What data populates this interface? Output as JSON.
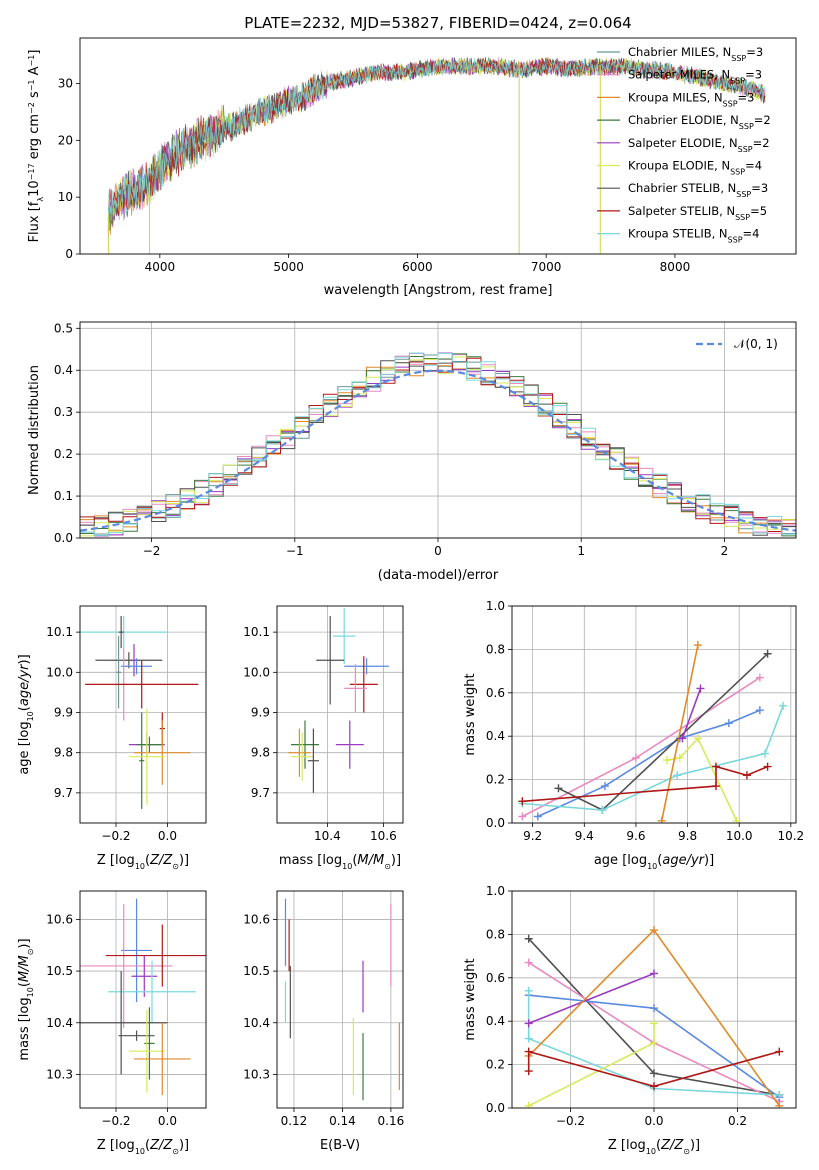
{
  "title": "PLATE=2232, MJD=53827, FIBERID=0424, z=0.064",
  "colors": {
    "Chabrier MILES": "#6a9a9a",
    "Salpeter MILES": "#e88ac0",
    "Kroupa MILES": "#e08a28",
    "Chabrier ELODIE": "#3c7a3c",
    "Salpeter ELODIE": "#9a3ac0",
    "Kroupa ELODIE": "#d8ea5a",
    "Chabrier STELIB": "#505050",
    "Salpeter STELIB": "#b01818",
    "Kroupa STELIB": "#7ad8dc",
    "normal": "#5a8ae0",
    "blue_fit": "#5a8ae0",
    "orange_fit": "#e08a28"
  },
  "chart_data": [
    {
      "id": "spectrum",
      "type": "line",
      "title": "PLATE=2232, MJD=53827, FIBERID=0424, z=0.064",
      "xlabel": "wavelength [Angstrom, rest frame]",
      "ylabel": "Flux [fλ 10⁻¹⁷ erg cm⁻² s⁻¹ A⁻¹]",
      "xlim": [
        3380,
        8940
      ],
      "ylim": [
        0,
        38
      ],
      "xticks": [
        "4000",
        "5000",
        "6000",
        "7000",
        "8000"
      ],
      "yticks": [
        "0",
        "10",
        "20",
        "30"
      ],
      "grid": false,
      "legend_position": "top-right",
      "legend": [
        {
          "name": "Chabrier MILES",
          "label": "Chabrier MILES, N",
          "sub": "SSP",
          "value": "=3"
        },
        {
          "name": "Salpeter MILES",
          "label": "Salpeter MILES, N",
          "sub": "SSP",
          "value": "=3"
        },
        {
          "name": "Kroupa MILES",
          "label": "Kroupa MILES, N",
          "sub": "SSP",
          "value": "=3"
        },
        {
          "name": "Chabrier ELODIE",
          "label": "Chabrier ELODIE, N",
          "sub": "SSP",
          "value": "=2"
        },
        {
          "name": "Salpeter ELODIE",
          "label": "Salpeter ELODIE, N",
          "sub": "SSP",
          "value": "=2"
        },
        {
          "name": "Kroupa ELODIE",
          "label": "Kroupa ELODIE, N",
          "sub": "SSP",
          "value": "=4"
        },
        {
          "name": "Chabrier STELIB",
          "label": "Chabrier STELIB, N",
          "sub": "SSP",
          "value": "=3"
        },
        {
          "name": "Salpeter STELIB",
          "label": "Salpeter STELIB, N",
          "sub": "SSP",
          "value": "=5"
        },
        {
          "name": "Kroupa STELIB",
          "label": "Kroupa STELIB, N",
          "sub": "SSP",
          "value": "=4"
        }
      ],
      "continuum": [
        [
          3600,
          7
        ],
        [
          3700,
          10
        ],
        [
          3800,
          11
        ],
        [
          3900,
          12
        ],
        [
          4000,
          15
        ],
        [
          4100,
          17
        ],
        [
          4200,
          19
        ],
        [
          4300,
          20
        ],
        [
          4400,
          21
        ],
        [
          4500,
          22
        ],
        [
          4600,
          23
        ],
        [
          4700,
          24
        ],
        [
          4800,
          25
        ],
        [
          4900,
          26
        ],
        [
          5000,
          27
        ],
        [
          5100,
          27.5
        ],
        [
          5200,
          29
        ],
        [
          5300,
          30
        ],
        [
          5500,
          31
        ],
        [
          5700,
          32
        ],
        [
          5900,
          32
        ],
        [
          6000,
          32.5
        ],
        [
          6200,
          33
        ],
        [
          6400,
          33
        ],
        [
          6600,
          33
        ],
        [
          6800,
          32.5
        ],
        [
          7000,
          33
        ],
        [
          7200,
          32.5
        ],
        [
          7400,
          33
        ],
        [
          7600,
          33
        ],
        [
          7800,
          32.5
        ],
        [
          8000,
          32
        ],
        [
          8200,
          31
        ],
        [
          8400,
          30
        ],
        [
          8600,
          29
        ],
        [
          8700,
          28
        ]
      ],
      "dropouts": [
        {
          "x": 3920,
          "y": 0
        },
        {
          "x": 6790,
          "y": 0
        },
        {
          "x": 7420,
          "y": 0
        },
        {
          "x": 3600,
          "y": 0
        }
      ]
    },
    {
      "id": "residuals",
      "type": "histogram",
      "xlabel": "(data-model)/error",
      "ylabel": "Normed distribution",
      "xlim": [
        -2.5,
        2.5
      ],
      "ylim": [
        0,
        0.515
      ],
      "xticks": [
        "−2",
        "−1",
        "0",
        "1",
        "2"
      ],
      "yticks": [
        "0.0",
        "0.1",
        "0.2",
        "0.3",
        "0.4",
        "0.5"
      ],
      "grid": true,
      "bin_width": 0.1,
      "legend_position": "top-right",
      "legend": [
        {
          "name": "normal",
          "label": "𝒩(0, 1)"
        }
      ],
      "series": [
        "Chabrier MILES",
        "Salpeter MILES",
        "Kroupa MILES",
        "Chabrier ELODIE",
        "Salpeter ELODIE",
        "Kroupa ELODIE",
        "Chabrier STELIB",
        "Salpeter STELIB",
        "Kroupa STELIB"
      ]
    },
    {
      "id": "age_vs_Z",
      "type": "scatter",
      "xlabel": "Z [log₁₀(Z/Z⊙)]",
      "ylabel": "age  [log₁₀(age/yr)]",
      "xlim": [
        -0.34,
        0.15
      ],
      "ylim": [
        9.625,
        10.165
      ],
      "xticks": [
        -0.2,
        0.0
      ],
      "yticks": [
        9.7,
        9.8,
        9.9,
        10.0,
        10.1
      ],
      "grid": true,
      "points": [
        {
          "series": "Kroupa STELIB",
          "x": -0.17,
          "y": 10.1,
          "xerr": 0.17,
          "yerr": 0.04
        },
        {
          "series": "Chabrier STELIB",
          "x": -0.18,
          "y": 10.1,
          "xerr": 0.01,
          "yerr": 0.04
        },
        {
          "series": "Chabrier STELIB",
          "x": -0.15,
          "y": 10.03,
          "xerr": 0.13,
          "yerr": 0.02
        },
        {
          "series": "Salpeter ELODIE",
          "x": -0.13,
          "y": 10.03,
          "xerr": 0.01,
          "yerr": 0.04
        },
        {
          "series": "normal",
          "x": -0.12,
          "y": 10.015,
          "xerr": 0.06,
          "yerr": 0.02
        },
        {
          "series": "Chabrier MILES",
          "x": -0.19,
          "y": 10.0,
          "xerr": 0.01,
          "yerr": 0.09
        },
        {
          "series": "Salpeter MILES",
          "x": -0.17,
          "y": 9.97,
          "xerr": 0.01,
          "yerr": 0.09
        },
        {
          "series": "Salpeter STELIB",
          "x": -0.1,
          "y": 9.97,
          "xerr": 0.22,
          "yerr": 0.06
        },
        {
          "series": "Salpeter STELIB",
          "x": -0.02,
          "y": 9.86,
          "xerr": 0.01,
          "yerr": 0.04
        },
        {
          "series": "Salpeter ELODIE",
          "x": -0.08,
          "y": 9.82,
          "xerr": 0.07,
          "yerr": 0.03
        },
        {
          "series": "Chabrier ELODIE",
          "x": -0.07,
          "y": 9.82,
          "xerr": 0.05,
          "yerr": 0.02
        },
        {
          "series": "Chabrier ELODIE",
          "x": -0.1,
          "y": 9.78,
          "xerr": 0.01,
          "yerr": 0.12
        },
        {
          "series": "Kroupa MILES",
          "x": -0.02,
          "y": 9.8,
          "xerr": 0.11,
          "yerr": 0.08
        },
        {
          "series": "Kroupa ELODIE",
          "x": -0.08,
          "y": 9.79,
          "xerr": 0.07,
          "yerr": 0.12
        }
      ]
    },
    {
      "id": "age_vs_mass",
      "type": "scatter",
      "xlabel": "mass [log₁₀(M/M⊙)]",
      "ylabel": "",
      "xlim": [
        10.22,
        10.67
      ],
      "ylim": [
        9.625,
        10.165
      ],
      "xticks": [
        10.4,
        10.6
      ],
      "yticks": [
        9.7,
        9.8,
        9.9,
        10.0,
        10.1
      ],
      "grid": true,
      "points": [
        {
          "series": "Kroupa STELIB",
          "x": 10.46,
          "y": 10.09,
          "xerr": 0.04,
          "yerr": 0.07
        },
        {
          "series": "Chabrier STELIB",
          "x": 10.41,
          "y": 10.03,
          "xerr": 0.05,
          "yerr": 0.11
        },
        {
          "series": "normal",
          "x": 10.54,
          "y": 10.015,
          "xerr": 0.08,
          "yerr": 0.02
        },
        {
          "series": "Salpeter STELIB",
          "x": 10.53,
          "y": 9.97,
          "xerr": 0.05,
          "yerr": 0.07
        },
        {
          "series": "Salpeter MILES",
          "x": 10.5,
          "y": 9.96,
          "xerr": 0.04,
          "yerr": 0.06
        },
        {
          "series": "Salpeter ELODIE",
          "x": 10.48,
          "y": 9.82,
          "xerr": 0.05,
          "yerr": 0.06
        },
        {
          "series": "Chabrier ELODIE",
          "x": 10.32,
          "y": 9.82,
          "xerr": 0.05,
          "yerr": 0.06
        },
        {
          "series": "Kroupa MILES",
          "x": 10.3,
          "y": 9.8,
          "xerr": 0.04,
          "yerr": 0.06
        },
        {
          "series": "Kroupa ELODIE",
          "x": 10.31,
          "y": 9.79,
          "xerr": 0.04,
          "yerr": 0.06
        },
        {
          "series": "Chabrier STELIB",
          "x": 10.35,
          "y": 9.78,
          "xerr": 0.02,
          "yerr": 0.08
        }
      ]
    },
    {
      "id": "weight_vs_age",
      "type": "line",
      "xlabel": "age  [log₁₀(age/yr)]",
      "ylabel": "mass weight",
      "xlim": [
        9.12,
        10.22
      ],
      "ylim": [
        0,
        1
      ],
      "xticks": [
        "9.2",
        "9.4",
        "9.6",
        "9.8",
        "10.0",
        "10.2"
      ],
      "yticks": [
        "0.0",
        "0.2",
        "0.4",
        "0.6",
        "0.8",
        "1.0"
      ],
      "grid": true,
      "series": [
        {
          "series": "normal",
          "points": [
            [
              9.22,
              0.03
            ],
            [
              9.48,
              0.17
            ],
            [
              9.77,
              0.39
            ],
            [
              9.96,
              0.46
            ],
            [
              10.08,
              0.52
            ]
          ]
        },
        {
          "series": "Salpeter MILES",
          "points": [
            [
              9.16,
              0.03
            ],
            [
              9.6,
              0.3
            ],
            [
              10.08,
              0.67
            ]
          ]
        },
        {
          "series": "Chabrier STELIB",
          "points": [
            [
              9.3,
              0.16
            ],
            [
              9.47,
              0.06
            ],
            [
              10.11,
              0.78
            ]
          ]
        },
        {
          "series": "Kroupa STELIB",
          "points": [
            [
              9.16,
              0.09
            ],
            [
              9.47,
              0.06
            ],
            [
              9.76,
              0.22
            ],
            [
              10.1,
              0.32
            ],
            [
              10.17,
              0.54
            ]
          ]
        },
        {
          "series": "Kroupa ELODIE",
          "points": [
            [
              9.72,
              0.29
            ],
            [
              9.77,
              0.3
            ],
            [
              9.84,
              0.39
            ],
            [
              9.99,
              0.01
            ]
          ]
        },
        {
          "series": "Kroupa MILES",
          "points": [
            [
              9.7,
              0.01
            ],
            [
              9.84,
              0.82
            ]
          ]
        },
        {
          "series": "Salpeter ELODIE",
          "points": [
            [
              9.78,
              0.39
            ],
            [
              9.85,
              0.62
            ]
          ]
        },
        {
          "series": "Salpeter STELIB",
          "points": [
            [
              9.16,
              0.1
            ],
            [
              9.91,
              0.17
            ],
            [
              9.91,
              0.26
            ],
            [
              10.03,
              0.22
            ],
            [
              10.11,
              0.26
            ]
          ]
        }
      ]
    },
    {
      "id": "mass_vs_Z",
      "type": "scatter",
      "xlabel": "Z [log₁₀(Z/Z⊙)]",
      "ylabel": "mass [log₁₀(M/M⊙)]",
      "xlim": [
        -0.34,
        0.15
      ],
      "ylim": [
        10.235,
        10.655
      ],
      "xticks": [
        -0.2,
        0.0
      ],
      "yticks": [
        10.3,
        10.4,
        10.5,
        10.6
      ],
      "grid": true,
      "points": [
        {
          "series": "normal",
          "x": -0.12,
          "y": 10.54,
          "xerr": 0.06,
          "yerr": 0.1
        },
        {
          "series": "Salpeter MILES",
          "x": -0.17,
          "y": 10.51,
          "xerr": 0.19,
          "yerr": 0.12
        },
        {
          "series": "Salpeter STELIB",
          "x": -0.02,
          "y": 10.53,
          "xerr": 0.22,
          "yerr": 0.06
        },
        {
          "series": "Salpeter ELODIE",
          "x": -0.09,
          "y": 10.49,
          "xerr": 0.05,
          "yerr": 0.04
        },
        {
          "series": "Kroupa STELIB",
          "x": -0.06,
          "y": 10.46,
          "xerr": 0.17,
          "yerr": 0.06
        },
        {
          "series": "Chabrier STELIB",
          "x": -0.18,
          "y": 10.4,
          "xerr": 0.18,
          "yerr": 0.1
        },
        {
          "series": "Chabrier STELIB",
          "x": -0.12,
          "y": 10.375,
          "xerr": 0.07,
          "yerr": 0.01
        },
        {
          "series": "Chabrier ELODIE",
          "x": -0.07,
          "y": 10.36,
          "xerr": 0.02,
          "yerr": 0.07
        },
        {
          "series": "Kroupa ELODIE",
          "x": -0.08,
          "y": 10.345,
          "xerr": 0.07,
          "yerr": 0.08
        },
        {
          "series": "Kroupa MILES",
          "x": -0.02,
          "y": 10.33,
          "xerr": 0.11,
          "yerr": 0.07
        }
      ]
    },
    {
      "id": "mass_vs_ebv",
      "type": "scatter",
      "xlabel": "E(B-V)",
      "ylabel": "",
      "xlim": [
        0.113,
        0.165
      ],
      "ylim": [
        10.235,
        10.655
      ],
      "xticks": [
        0.12,
        0.14,
        0.16
      ],
      "yticks": [
        10.3,
        10.4,
        10.5,
        10.6
      ],
      "grid": true,
      "points": [
        {
          "series": "normal",
          "x": 0.1165,
          "y": 10.575,
          "xerr": 0,
          "yerr": 0.065
        },
        {
          "series": "Salpeter STELIB",
          "x": 0.118,
          "y": 10.55,
          "xerr": 0,
          "yerr": 0.05
        },
        {
          "series": "Kroupa STELIB",
          "x": 0.1165,
          "y": 10.44,
          "xerr": 0,
          "yerr": 0.04
        },
        {
          "series": "Chabrier STELIB",
          "x": 0.1185,
          "y": 10.44,
          "xerr": 0,
          "yerr": 0.07
        },
        {
          "series": "Salpeter MILES",
          "x": 0.16,
          "y": 10.55,
          "xerr": 0,
          "yerr": 0.08
        },
        {
          "series": "Salpeter ELODIE",
          "x": 0.1485,
          "y": 10.47,
          "xerr": 0,
          "yerr": 0.05
        },
        {
          "series": "Kroupa ELODIE",
          "x": 0.1445,
          "y": 10.335,
          "xerr": 0,
          "yerr": 0.075
        },
        {
          "series": "Chabrier ELODIE",
          "x": 0.1485,
          "y": 10.315,
          "xerr": 0,
          "yerr": 0.065
        },
        {
          "series": "Kroupa MILES",
          "x": 0.1635,
          "y": 10.335,
          "xerr": 0,
          "yerr": 0.065
        }
      ]
    },
    {
      "id": "weight_vs_Z",
      "type": "line",
      "xlabel": "Z [log₁₀(Z/Z⊙)]",
      "ylabel": "mass weight",
      "xlim": [
        -0.34,
        0.34
      ],
      "ylim": [
        0,
        1
      ],
      "xticks": [
        "−0.2",
        "0.0",
        "0.2"
      ],
      "yticks": [
        "0.0",
        "0.2",
        "0.4",
        "0.6",
        "0.8",
        "1.0"
      ],
      "grid": true,
      "series": [
        {
          "series": "Chabrier STELIB",
          "points": [
            [
              -0.3,
              0.78
            ],
            [
              0.0,
              0.16
            ],
            [
              0.3,
              0.06
            ]
          ]
        },
        {
          "series": "Salpeter MILES",
          "points": [
            [
              -0.3,
              0.67
            ],
            [
              0.0,
              0.3
            ],
            [
              0.3,
              0.03
            ]
          ]
        },
        {
          "series": "normal",
          "points": [
            [
              -0.3,
              0.52
            ],
            [
              0.0,
              0.46
            ],
            [
              0.3,
              0.05
            ]
          ]
        },
        {
          "series": "Kroupa STELIB",
          "points": [
            [
              -0.3,
              0.54
            ],
            [
              -0.3,
              0.32
            ],
            [
              0.0,
              0.09
            ],
            [
              0.3,
              0.06
            ]
          ]
        },
        {
          "series": "Salpeter ELODIE",
          "points": [
            [
              -0.3,
              0.39
            ],
            [
              0.0,
              0.62
            ]
          ]
        },
        {
          "series": "Kroupa MILES",
          "points": [
            [
              -0.3,
              0.24
            ],
            [
              0.0,
              0.82
            ],
            [
              0.3,
              0.01
            ]
          ]
        },
        {
          "series": "Kroupa ELODIE",
          "points": [
            [
              -0.3,
              0.01
            ],
            [
              0.0,
              0.3
            ],
            [
              0.0,
              0.39
            ]
          ]
        },
        {
          "series": "Salpeter STELIB",
          "points": [
            [
              -0.3,
              0.17
            ],
            [
              -0.3,
              0.26
            ],
            [
              0.0,
              0.1
            ],
            [
              0.3,
              0.26
            ]
          ]
        }
      ]
    }
  ]
}
